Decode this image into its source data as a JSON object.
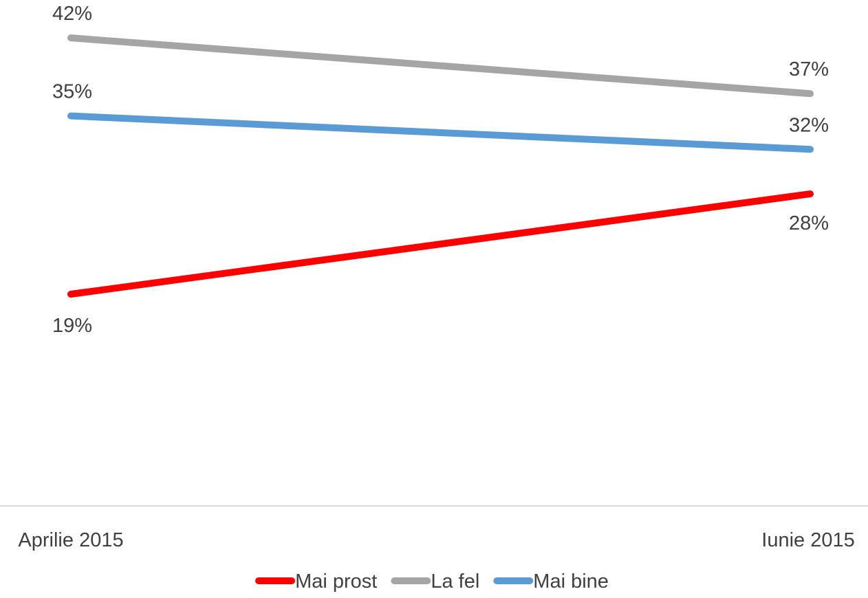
{
  "chart_data": {
    "type": "line",
    "categories": [
      "Aprilie 2015",
      "Iunie 2015"
    ],
    "series": [
      {
        "name": "Mai prost",
        "values": [
          19,
          28
        ],
        "labels": [
          "19%",
          "28%"
        ],
        "color": "#ff0000"
      },
      {
        "name": "La fel",
        "values": [
          42,
          37
        ],
        "labels": [
          "42%",
          "37%"
        ],
        "color": "#a5a5a5"
      },
      {
        "name": "Mai bine",
        "values": [
          35,
          32
        ],
        "labels": [
          "35%",
          "32%"
        ],
        "color": "#5b9bd5"
      }
    ],
    "title": "",
    "xlabel": "",
    "ylabel": "",
    "ylim": [
      0,
      46
    ],
    "y_axis_visible": false,
    "grid": false,
    "legend": "bottom",
    "axis_color": "#d9d9d9"
  }
}
